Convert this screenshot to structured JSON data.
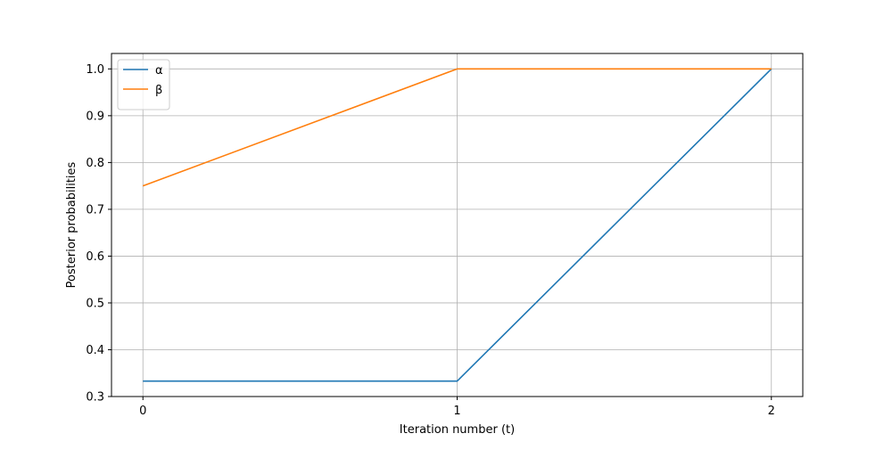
{
  "chart_data": {
    "type": "line",
    "title": "",
    "xlabel": "Iteration number (t)",
    "ylabel": "Posterior probabilities",
    "x": [
      0,
      1,
      2
    ],
    "x_ticks": [
      "0",
      "1",
      "2"
    ],
    "y_ticks": [
      "0.3",
      "0.4",
      "0.5",
      "0.6",
      "0.7",
      "0.8",
      "0.9",
      "1.0"
    ],
    "xlim": [
      -0.1,
      2.1
    ],
    "ylim": [
      0.3,
      1.033
    ],
    "grid": true,
    "legend_position": "top-left",
    "series": [
      {
        "name": "α",
        "color": "#1f77b4",
        "values": [
          0.333,
          0.333,
          1.0
        ]
      },
      {
        "name": "β",
        "color": "#ff7f0e",
        "values": [
          0.75,
          1.0,
          1.0
        ]
      }
    ]
  }
}
